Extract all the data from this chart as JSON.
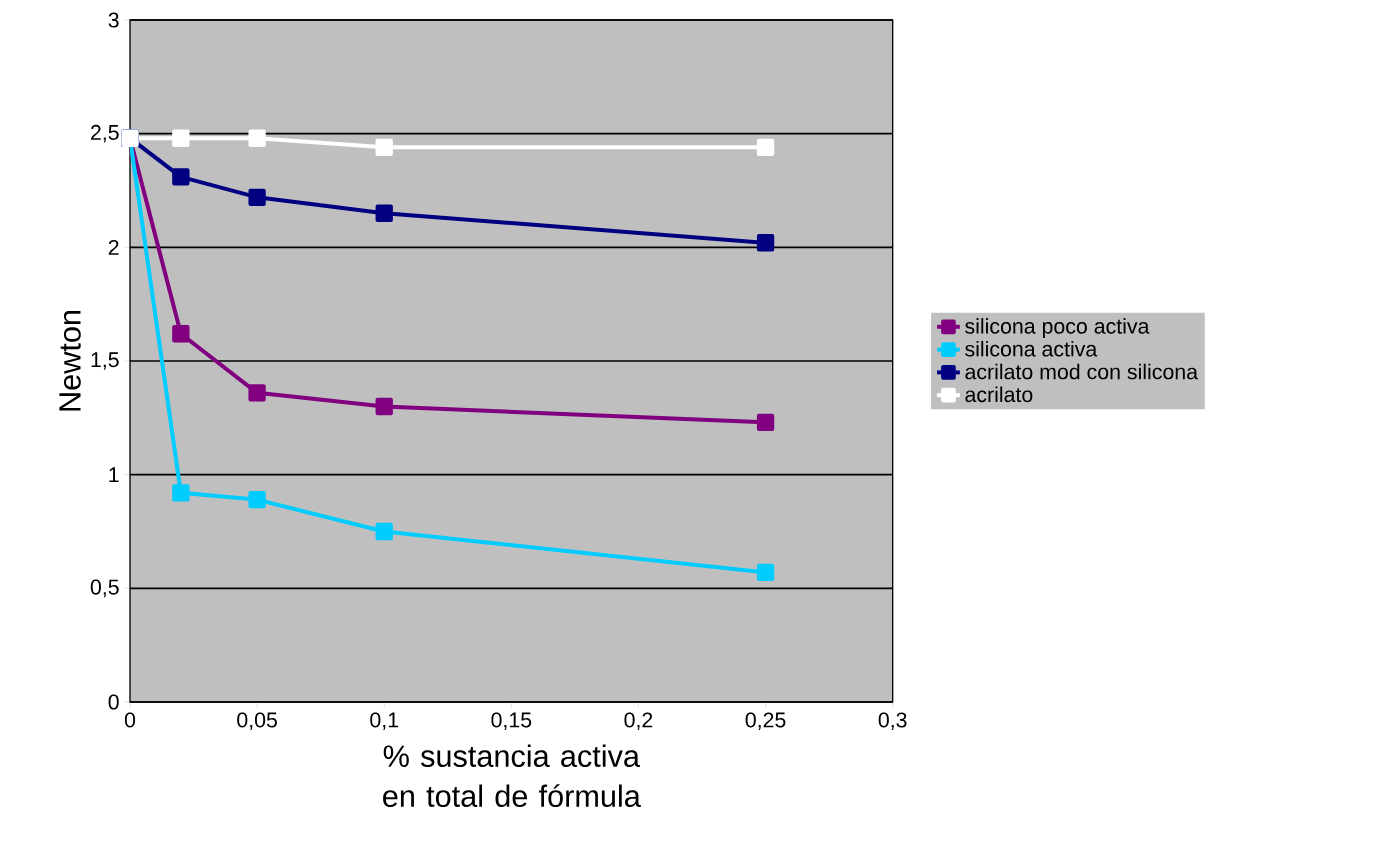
{
  "chart_data": {
    "type": "line",
    "xlabel": "% sustancia activa en total de fórmula",
    "ylabel": "Newton",
    "xlim": [
      0,
      0.3
    ],
    "ylim": [
      0,
      3
    ],
    "xticks": [
      0,
      {
        "value": 0.05,
        "label": "0,05"
      },
      {
        "value": 0.1,
        "label": "0,1"
      },
      {
        "value": 0.15,
        "label": "0,15"
      },
      {
        "value": 0.2,
        "label": "0,2"
      },
      {
        "value": 0.25,
        "label": "0,25"
      },
      {
        "value": 0.3,
        "label": "0,3"
      }
    ],
    "yticks": [
      0,
      {
        "value": 0.5,
        "label": "0,5"
      },
      1,
      {
        "value": 1.5,
        "label": "1,5"
      },
      2,
      {
        "value": 2.5,
        "label": "2,5"
      },
      3
    ],
    "grid": "y",
    "legend": "right",
    "marker": "square",
    "x": [
      0,
      0.02,
      0.05,
      0.1,
      0.25
    ],
    "series": [
      {
        "name": "silicona poco activa",
        "color": "#800080",
        "values": [
          2.48,
          1.62,
          1.36,
          1.3,
          1.23
        ]
      },
      {
        "name": "silicona activa",
        "color": "#00ccff",
        "values": [
          2.48,
          0.92,
          0.89,
          0.75,
          0.57
        ]
      },
      {
        "name": "acrilato mod con silicona",
        "color": "#000080",
        "values": [
          2.48,
          2.31,
          2.22,
          2.15,
          2.02
        ]
      },
      {
        "name": "acrilato",
        "color": "#ffffff",
        "values": [
          2.48,
          2.48,
          2.48,
          2.44,
          2.44
        ]
      }
    ]
  }
}
